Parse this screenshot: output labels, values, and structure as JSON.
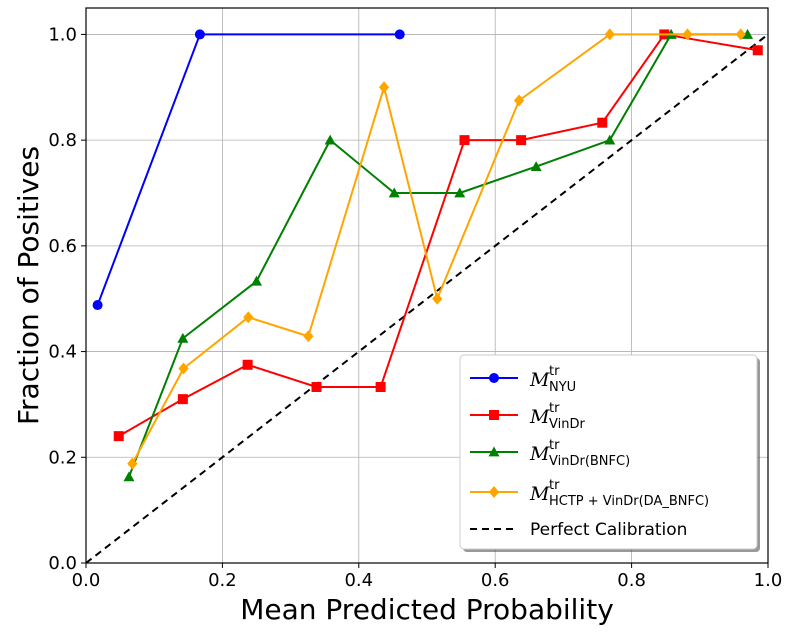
{
  "chart_data": {
    "type": "line",
    "title": "",
    "xlabel": "Mean Predicted Probability",
    "ylabel": "Fraction of Positives",
    "xlim": [
      0.0,
      1.0
    ],
    "ylim": [
      0.0,
      1.05
    ],
    "xticks": [
      "0.0",
      "0.2",
      "0.4",
      "0.6",
      "0.8",
      "1.0"
    ],
    "yticks": [
      "0.0",
      "0.2",
      "0.4",
      "0.6",
      "0.8",
      "1.0"
    ],
    "grid": true,
    "legend_position": "lower-right",
    "series": [
      {
        "name_math": "M",
        "name_sup": "tr",
        "name_sub": "NYU",
        "color": "#0000ff",
        "marker": "circle",
        "x": [
          0.017,
          0.167,
          0.46
        ],
        "y": [
          0.488,
          1.0,
          1.0
        ]
      },
      {
        "name_math": "M",
        "name_sup": "tr",
        "name_sub": "VinDr",
        "color": "#ff0000",
        "marker": "square",
        "x": [
          0.048,
          0.142,
          0.237,
          0.338,
          0.432,
          0.555,
          0.638,
          0.757,
          0.848,
          0.985
        ],
        "y": [
          0.24,
          0.31,
          0.375,
          0.333,
          0.333,
          0.8,
          0.8,
          0.833,
          1.0,
          0.97
        ]
      },
      {
        "name_math": "M",
        "name_sup": "tr",
        "name_sub": "VinDr(BNFC)",
        "color": "#008000",
        "marker": "triangle",
        "x": [
          0.063,
          0.142,
          0.25,
          0.358,
          0.452,
          0.548,
          0.66,
          0.768,
          0.858,
          0.97
        ],
        "y": [
          0.163,
          0.425,
          0.533,
          0.8,
          0.7,
          0.7,
          0.75,
          0.8,
          1.0,
          1.0
        ]
      },
      {
        "name_math": "M",
        "name_sup": "tr",
        "name_sub": "HCTP + VinDr(DA_BNFC)",
        "color": "#ffa500",
        "marker": "diamond",
        "x": [
          0.068,
          0.143,
          0.238,
          0.326,
          0.437,
          0.515,
          0.635,
          0.768,
          0.882,
          0.96
        ],
        "y": [
          0.188,
          0.368,
          0.465,
          0.429,
          0.9,
          0.5,
          0.875,
          1.0,
          1.0,
          1.0
        ]
      },
      {
        "name": "Perfect Calibration",
        "color": "#000000",
        "dashed": true,
        "x": [
          0.0,
          1.0
        ],
        "y": [
          0.0,
          1.0
        ]
      }
    ]
  }
}
